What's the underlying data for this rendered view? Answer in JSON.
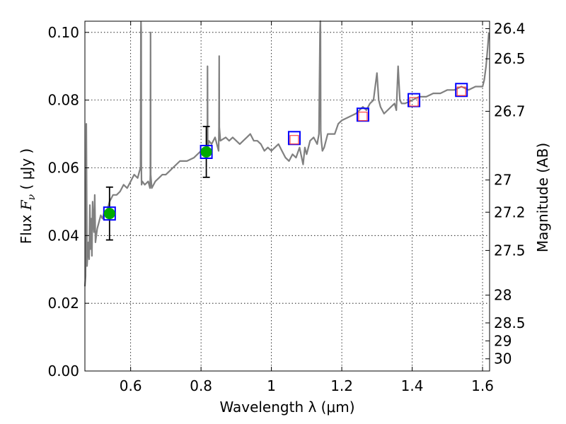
{
  "chart_data": {
    "type": "line",
    "xlabel": "Wavelength  λ (μm)",
    "ylabel": "Flux  Fν ( μJy )",
    "ylabel_right": "Magnitude (AB)",
    "xlim": [
      0.47,
      1.62
    ],
    "ylim": [
      0.0,
      0.1033
    ],
    "x_ticks": [
      {
        "value": 0.6,
        "label": "0.6"
      },
      {
        "value": 0.8,
        "label": "0.8"
      },
      {
        "value": 1.0,
        "label": "1"
      },
      {
        "value": 1.2,
        "label": "1.2"
      },
      {
        "value": 1.4,
        "label": "1.4"
      },
      {
        "value": 1.6,
        "label": "1.6"
      }
    ],
    "y_ticks": [
      {
        "value": 0.0,
        "label": "0.00"
      },
      {
        "value": 0.02,
        "label": "0.02"
      },
      {
        "value": 0.04,
        "label": "0.04"
      },
      {
        "value": 0.06,
        "label": "0.06"
      },
      {
        "value": 0.08,
        "label": "0.08"
      },
      {
        "value": 0.1,
        "label": "0.10"
      }
    ],
    "mag_ticks": [
      {
        "value": 0.1011,
        "label": "26.4"
      },
      {
        "value": 0.0922,
        "label": "26.5"
      },
      {
        "value": 0.0767,
        "label": "26.7"
      },
      {
        "value": 0.0564,
        "label": "27"
      },
      {
        "value": 0.0469,
        "label": "27.2"
      },
      {
        "value": 0.0356,
        "label": "27.5"
      },
      {
        "value": 0.0224,
        "label": "28"
      },
      {
        "value": 0.0142,
        "label": "28.5"
      },
      {
        "value": 0.0089,
        "label": "29"
      },
      {
        "value": 0.0036,
        "label": "30"
      }
    ],
    "series": [
      {
        "name": "model-spectrum",
        "color": "#808080",
        "x": [
          0.47,
          0.472,
          0.474,
          0.476,
          0.478,
          0.48,
          0.482,
          0.484,
          0.486,
          0.488,
          0.49,
          0.492,
          0.494,
          0.496,
          0.498,
          0.5,
          0.505,
          0.51,
          0.515,
          0.52,
          0.525,
          0.53,
          0.54,
          0.55,
          0.56,
          0.57,
          0.58,
          0.59,
          0.6,
          0.61,
          0.62,
          0.625,
          0.628,
          0.629,
          0.6295,
          0.63,
          0.6305,
          0.631,
          0.633,
          0.64,
          0.65,
          0.655,
          0.656,
          0.6565,
          0.657,
          0.66,
          0.67,
          0.68,
          0.69,
          0.7,
          0.71,
          0.72,
          0.74,
          0.76,
          0.78,
          0.8,
          0.81,
          0.815,
          0.818,
          0.8185,
          0.819,
          0.822,
          0.83,
          0.84,
          0.85,
          0.851,
          0.8515,
          0.852,
          0.855,
          0.87,
          0.88,
          0.89,
          0.9,
          0.91,
          0.92,
          0.93,
          0.94,
          0.95,
          0.96,
          0.97,
          0.98,
          0.99,
          1.0,
          1.01,
          1.02,
          1.03,
          1.04,
          1.05,
          1.06,
          1.07,
          1.08,
          1.09,
          1.095,
          1.1,
          1.11,
          1.12,
          1.13,
          1.135,
          1.138,
          1.139,
          1.1395,
          1.14,
          1.142,
          1.145,
          1.15,
          1.16,
          1.17,
          1.18,
          1.19,
          1.2,
          1.22,
          1.24,
          1.26,
          1.27,
          1.28,
          1.29,
          1.3,
          1.305,
          1.31,
          1.32,
          1.33,
          1.34,
          1.35,
          1.355,
          1.36,
          1.365,
          1.37,
          1.38,
          1.4,
          1.42,
          1.44,
          1.46,
          1.48,
          1.5,
          1.52,
          1.54,
          1.56,
          1.58,
          1.6,
          1.605,
          1.61,
          1.615,
          1.618
        ],
        "y": [
          0.025,
          0.028,
          0.073,
          0.031,
          0.035,
          0.038,
          0.033,
          0.049,
          0.036,
          0.045,
          0.034,
          0.05,
          0.044,
          0.041,
          0.052,
          0.038,
          0.042,
          0.044,
          0.046,
          0.045,
          0.047,
          0.046,
          0.05,
          0.052,
          0.052,
          0.053,
          0.055,
          0.054,
          0.056,
          0.058,
          0.057,
          0.059,
          0.06,
          0.1,
          0.103,
          0.1,
          0.06,
          0.055,
          0.056,
          0.055,
          0.056,
          0.054,
          0.058,
          0.1,
          0.058,
          0.054,
          0.056,
          0.057,
          0.058,
          0.058,
          0.059,
          0.06,
          0.062,
          0.062,
          0.063,
          0.065,
          0.066,
          0.064,
          0.065,
          0.09,
          0.065,
          0.068,
          0.067,
          0.069,
          0.065,
          0.072,
          0.093,
          0.072,
          0.068,
          0.069,
          0.068,
          0.069,
          0.068,
          0.067,
          0.068,
          0.069,
          0.07,
          0.068,
          0.068,
          0.067,
          0.065,
          0.066,
          0.065,
          0.066,
          0.067,
          0.065,
          0.063,
          0.062,
          0.064,
          0.063,
          0.066,
          0.061,
          0.066,
          0.064,
          0.068,
          0.069,
          0.067,
          0.07,
          0.1,
          0.104,
          0.1,
          0.071,
          0.068,
          0.065,
          0.066,
          0.07,
          0.07,
          0.07,
          0.073,
          0.074,
          0.075,
          0.076,
          0.078,
          0.077,
          0.079,
          0.08,
          0.088,
          0.08,
          0.078,
          0.076,
          0.077,
          0.078,
          0.079,
          0.077,
          0.09,
          0.08,
          0.079,
          0.079,
          0.08,
          0.081,
          0.081,
          0.082,
          0.082,
          0.083,
          0.083,
          0.084,
          0.083,
          0.084,
          0.084,
          0.086,
          0.09,
          0.096,
          0.1
        ]
      }
    ],
    "photometry_green": [
      {
        "x": 0.54,
        "y": 0.0465,
        "err": 0.0078
      },
      {
        "x": 0.815,
        "y": 0.0647,
        "err": 0.0075
      }
    ],
    "model_boxes_blue": [
      {
        "x": 0.54,
        "y": 0.0465
      },
      {
        "x": 0.815,
        "y": 0.0647
      },
      {
        "x": 1.065,
        "y": 0.0688
      },
      {
        "x": 1.26,
        "y": 0.0757
      },
      {
        "x": 1.405,
        "y": 0.08
      },
      {
        "x": 1.54,
        "y": 0.083
      }
    ],
    "upper_limits_red": [
      {
        "x": 1.065,
        "y": 0.0683
      },
      {
        "x": 1.26,
        "y": 0.0752
      },
      {
        "x": 1.405,
        "y": 0.0795
      },
      {
        "x": 1.54,
        "y": 0.0826
      }
    ],
    "colors": {
      "spectrum": "#808080",
      "green": "#00aa00",
      "blue_box": "#0000ff",
      "red_box": "#ff4444"
    }
  }
}
